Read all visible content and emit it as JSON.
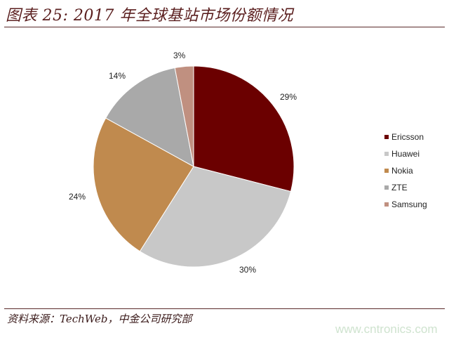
{
  "header": {
    "title": "图表 25: 2017 年全球基站市场份额情况"
  },
  "footer": {
    "source": "资料来源：TechWeb，中金公司研究部",
    "watermark": "www.cntronics.com"
  },
  "chart_data": {
    "type": "pie",
    "title": "2017 年全球基站市场份额情况",
    "categories": [
      "Ericsson",
      "Huawei",
      "Nokia",
      "ZTE",
      "Samsung"
    ],
    "values": [
      29,
      30,
      24,
      14,
      3
    ],
    "labels": [
      "29%",
      "30%",
      "24%",
      "14%",
      "3%"
    ],
    "colors": [
      "#6b0000",
      "#c8c8c8",
      "#c08a4e",
      "#a9a9a9",
      "#c09080"
    ],
    "start_angle": "12 o'clock, clockwise",
    "legend_position": "right"
  }
}
